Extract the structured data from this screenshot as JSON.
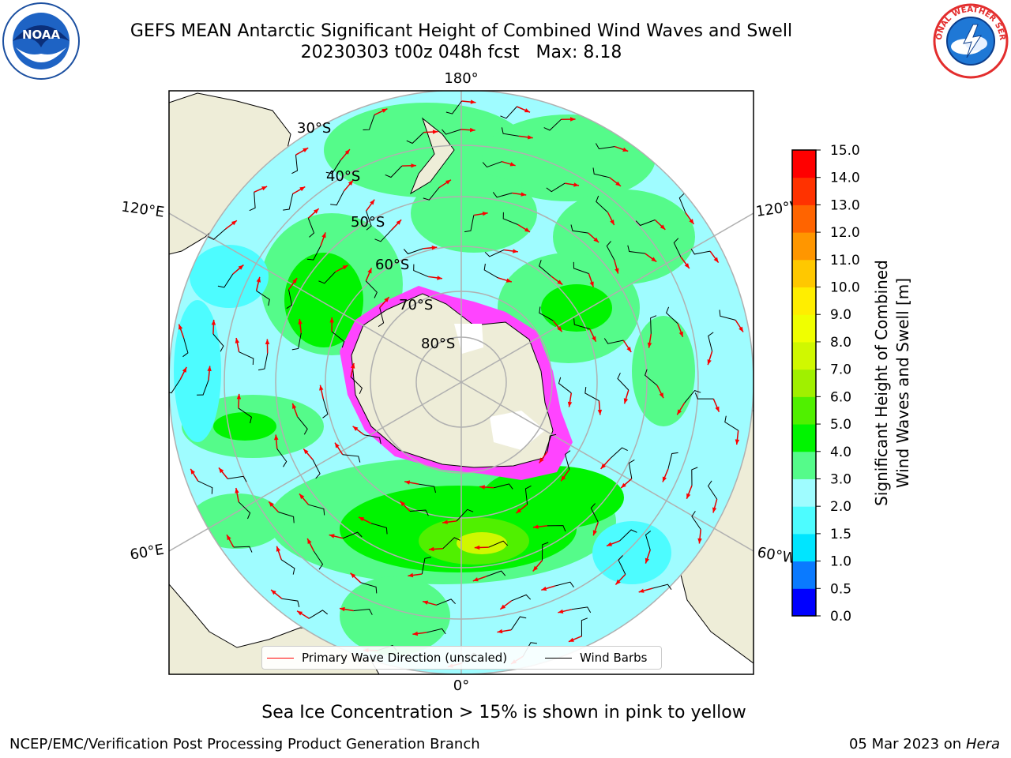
{
  "title": {
    "line1": "GEFS MEAN Antarctic Significant Height of Combined Wind Waves and Swell",
    "line2": "20230303 t00z 048h fcst   Max: 8.18"
  },
  "logos": {
    "left": {
      "icon": "noaa-logo-icon",
      "text": "NOAA"
    },
    "right": {
      "icon": "nws-logo-icon",
      "text": "NATIONAL WEATHER SERVICE"
    }
  },
  "map": {
    "longitude_labels": {
      "top": "180°",
      "bottom": "0°",
      "upper_left": "120°E",
      "upper_right": "120°W",
      "lower_left": "60°E",
      "lower_right": "60°W"
    },
    "latitude_labels": [
      "30°S",
      "40°S",
      "50°S",
      "60°S",
      "70°S",
      "80°S"
    ],
    "colors": {
      "ocean_low": "#9ffcff",
      "ocean_mid": "#55fb8a",
      "ocean_high": "#00f400",
      "land": "#eeedd8",
      "ice": "#ff44ff",
      "arrow": "#ff0000"
    }
  },
  "legend": {
    "wave_label": "Primary Wave Direction (unscaled)",
    "barb_label": "Wind Barbs",
    "wave_color": "#ff0000",
    "barb_color": "#000000"
  },
  "colorbar": {
    "label_line1": "Significant Height of Combined",
    "label_line2": "Wind Waves and Swell [m]",
    "ticks": [
      "0.0",
      "0.5",
      "1.0",
      "1.5",
      "2.0",
      "3.0",
      "4.0",
      "5.0",
      "6.0",
      "7.0",
      "8.0",
      "9.0",
      "10.0",
      "11.0",
      "12.0",
      "13.0",
      "14.0",
      "15.0"
    ],
    "colors": [
      "#0000ff",
      "#0a7aff",
      "#00e5ff",
      "#4dfcff",
      "#9ffcff",
      "#55fb8a",
      "#00f400",
      "#50f000",
      "#a0f000",
      "#d0f800",
      "#f0ff00",
      "#ffee00",
      "#ffc800",
      "#ff9600",
      "#ff6400",
      "#ff3200",
      "#ff0000"
    ]
  },
  "caption": "Sea Ice Concentration > 15% is shown in pink to yellow",
  "footer": {
    "credit": "NCEP/EMC/Verification Post Processing Product Generation Branch",
    "date": "05 Mar 2023 on",
    "host": "Hera"
  }
}
